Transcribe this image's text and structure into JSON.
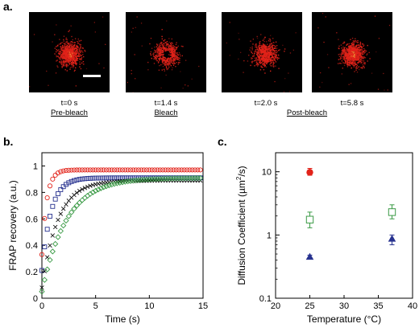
{
  "panels": {
    "a": "a.",
    "b": "b.",
    "c": "c."
  },
  "frames": [
    {
      "time": "t=0 s",
      "stage": "Pre-bleach",
      "type": "full"
    },
    {
      "time": "t=1.4 s",
      "stage": "Bleach",
      "type": "ring"
    },
    {
      "time": "t=2.0 s",
      "stage": "",
      "type": "partial"
    },
    {
      "time": "t=5.8 s",
      "stage": "",
      "type": "full"
    }
  ],
  "post_bleach_label": "Post-bleach",
  "colors": {
    "spot": "#e2231a",
    "red": "#e2231a",
    "blue": "#27328f",
    "green": "#3a9a45",
    "black": "#000000"
  },
  "chart_data": [
    {
      "type": "scatter",
      "xlabel": "Time (s)",
      "ylabel": "FRAP recovery (a.u.)",
      "xlim": [
        0,
        15
      ],
      "ylim": [
        0,
        1.1
      ],
      "xticks": [
        0,
        5,
        10,
        15
      ],
      "yticks": [
        0,
        0.2,
        0.4,
        0.6,
        0.8,
        1
      ],
      "ytick_labels": [
        "0",
        "0.2",
        "0.4",
        "0.6",
        "0.8",
        "1"
      ],
      "series": [
        {
          "color": "red",
          "marker": "circle-open",
          "plateau": 0.97,
          "tau": 0.45,
          "start": 0.33
        },
        {
          "color": "blue",
          "marker": "square-open",
          "plateau": 0.91,
          "tau": 0.85,
          "start": 0.21
        },
        {
          "color": "black",
          "marker": "x",
          "plateau": 0.89,
          "tau": 1.5,
          "start": 0.08
        },
        {
          "color": "green",
          "marker": "diamond-open",
          "plateau": 0.91,
          "tau": 2.3,
          "start": 0.05
        }
      ],
      "x_end": 14.9,
      "x_step": 0.25
    },
    {
      "type": "scatter",
      "xlabel": "Temperature (°C)",
      "ylabel_parts": [
        "Diffusion Coefficient (",
        "µm",
        "2",
        "/s)"
      ],
      "yscale": "log",
      "xlim": [
        20,
        40
      ],
      "ylim": [
        0.1,
        20
      ],
      "xticks": [
        20,
        25,
        30,
        35,
        40
      ],
      "yticks": [
        0.1,
        1,
        10
      ],
      "ytick_labels": [
        "0.1",
        "1",
        "10"
      ],
      "points": [
        {
          "x": 25,
          "y": 9.8,
          "err": [
            8.8,
            11.3
          ],
          "marker": "circle-filled",
          "color": "red"
        },
        {
          "x": 25,
          "y": 1.75,
          "err": [
            1.3,
            2.3
          ],
          "marker": "square-open",
          "color": "green"
        },
        {
          "x": 25,
          "y": 0.45,
          "err": [
            0.42,
            0.48
          ],
          "marker": "triangle-filled",
          "color": "blue"
        },
        {
          "x": 37,
          "y": 2.3,
          "err": [
            1.8,
            3.0
          ],
          "marker": "square-open",
          "color": "green"
        },
        {
          "x": 37,
          "y": 0.87,
          "err": [
            0.7,
            1.0
          ],
          "marker": "triangle-filled",
          "color": "blue"
        }
      ]
    }
  ]
}
